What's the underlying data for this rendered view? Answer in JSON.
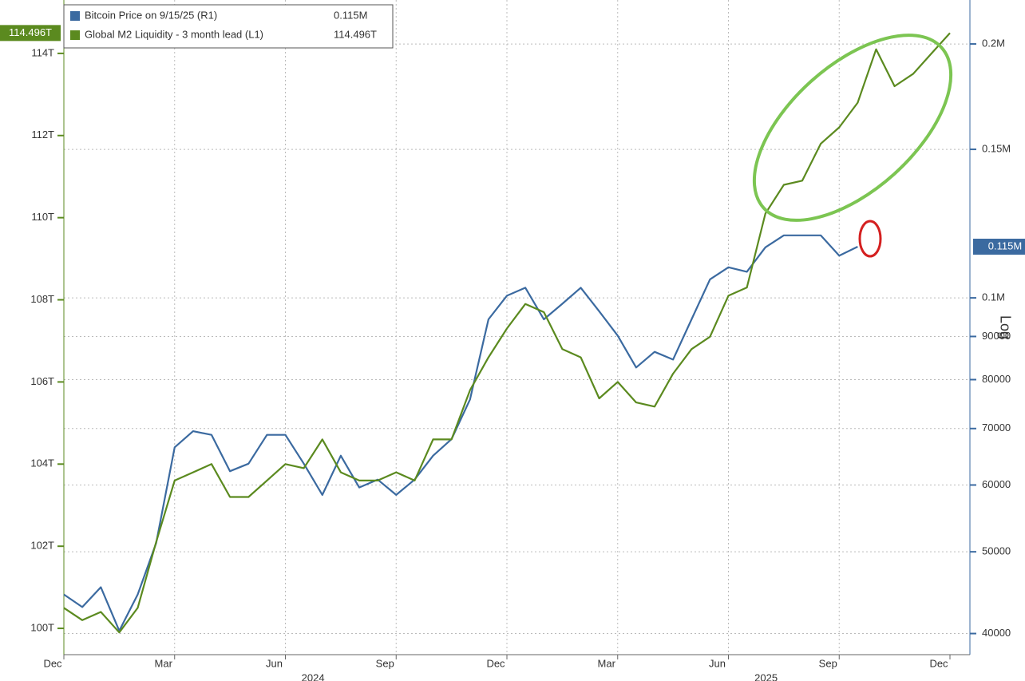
{
  "chart_data": {
    "type": "line",
    "categories": [
      "Dec",
      null,
      null,
      null,
      null,
      null,
      "Mar",
      null,
      null,
      null,
      null,
      null,
      "Jun",
      null,
      null,
      null,
      null,
      null,
      "Sep",
      null,
      null,
      null,
      null,
      null,
      "Dec",
      null,
      null,
      null,
      null,
      null,
      "Mar",
      null,
      null,
      null,
      null,
      null,
      "Jun",
      null,
      null,
      null,
      null,
      null,
      "Sep",
      null,
      null,
      null,
      null,
      null,
      "Dec"
    ],
    "x_groups": [
      "2024",
      "2025"
    ],
    "series": [
      {
        "name": "Bitcoin Price on 9/15/25 (R1)",
        "color": "#3b6aa0",
        "axis": "y2",
        "values": [
          44500,
          43000,
          45400,
          40300,
          44500,
          51200,
          66500,
          69500,
          68800,
          62300,
          63600,
          68800,
          68800,
          63600,
          58400,
          65000,
          59600,
          60900,
          58400,
          60900,
          65000,
          68000,
          75800,
          94300,
          100600,
          102800,
          94300,
          98400,
          102800,
          96400,
          90200,
          82700,
          86300,
          84500,
          94300,
          105200,
          108700,
          107400,
          114800,
          118600,
          118600,
          118600,
          112200,
          115000,
          null,
          null,
          null,
          null,
          null
        ],
        "value_labels": [
          null,
          null,
          null,
          null,
          null,
          null,
          null,
          null,
          null,
          null,
          null,
          null,
          null,
          null,
          null,
          null,
          null,
          null,
          null,
          null,
          null,
          null,
          null,
          null,
          null,
          null,
          null,
          null,
          null,
          null,
          null,
          null,
          null,
          null,
          null,
          null,
          null,
          null,
          null,
          null,
          null,
          null,
          null,
          "0.115M",
          null,
          null,
          null,
          null,
          null
        ]
      },
      {
        "name": "Global M2 Liquidity - 3 month lead (L1)",
        "color": "#5b8a1f",
        "values": [
          100.5,
          100.2,
          100.4,
          99.9,
          100.5,
          102.1,
          103.6,
          103.8,
          104.0,
          103.2,
          103.2,
          103.6,
          104.0,
          103.9,
          104.6,
          103.8,
          103.6,
          103.6,
          103.8,
          103.6,
          104.6,
          104.6,
          105.8,
          106.6,
          107.3,
          107.9,
          107.7,
          106.8,
          106.6,
          105.6,
          106.0,
          105.5,
          105.4,
          106.2,
          106.8,
          107.1,
          108.1,
          108.3,
          110.1,
          110.8,
          110.9,
          111.8,
          112.2,
          112.8,
          114.1,
          113.2,
          113.5,
          114.0,
          114.496
        ],
        "value_labels": [
          null,
          null,
          null,
          null,
          null,
          null,
          null,
          null,
          null,
          null,
          null,
          null,
          null,
          null,
          null,
          null,
          null,
          null,
          null,
          null,
          null,
          null,
          null,
          null,
          null,
          null,
          null,
          null,
          null,
          null,
          null,
          null,
          null,
          null,
          null,
          null,
          null,
          null,
          null,
          null,
          null,
          null,
          null,
          null,
          null,
          null,
          null,
          null,
          "114.496T"
        ]
      }
    ],
    "ylim": [
      99.36,
      115.3
    ],
    "yticks": [
      {
        "value": 100,
        "label": "100T"
      },
      {
        "value": 102,
        "label": "102T"
      },
      {
        "value": 104,
        "label": "104T"
      },
      {
        "value": 106,
        "label": "106T"
      },
      {
        "value": 108,
        "label": "108T"
      },
      {
        "value": 110,
        "label": "110T"
      },
      {
        "value": 112,
        "label": "112T"
      },
      {
        "value": 114,
        "label": "114T"
      }
    ],
    "y2lim": [
      37760,
      225500
    ],
    "y2log": true,
    "y2_scale_label": "Log",
    "y2ticks": [
      40000,
      50000,
      60000,
      70000,
      80000,
      90000,
      {
        "value": 100000,
        "label": "0.1M"
      },
      {
        "value": 150000,
        "label": "0.15M"
      },
      {
        "value": 200000,
        "label": "0.2M"
      }
    ],
    "grid": true
  }
}
